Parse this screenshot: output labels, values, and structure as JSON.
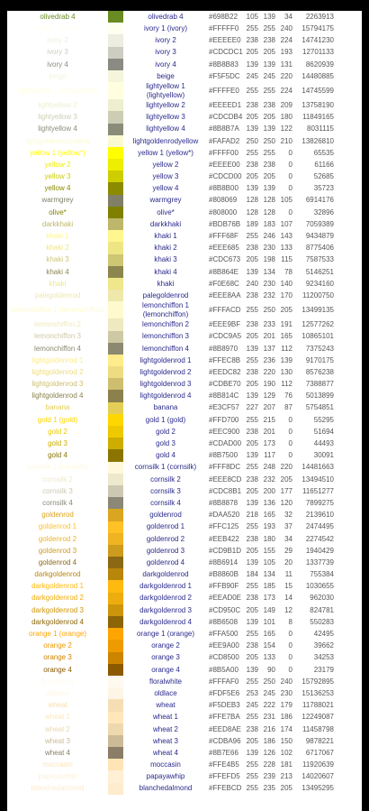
{
  "table": {
    "rows": [
      [
        "olivedrab 4",
        "#698B22",
        105,
        139,
        34,
        2263913
      ],
      [
        "ivory 1 (ivory)",
        "#FFFFF0",
        255,
        255,
        240,
        15794175
      ],
      [
        "ivory 2",
        "#EEEEE0",
        238,
        238,
        224,
        14741230
      ],
      [
        "ivory 3",
        "#CDCDC1",
        205,
        205,
        193,
        12701133
      ],
      [
        "ivory 4",
        "#8B8B83",
        139,
        139,
        131,
        8620939
      ],
      [
        "beige",
        "#F5F5DC",
        245,
        245,
        220,
        14480885
      ],
      [
        "lightyellow 1 (lightyellow)",
        "#FFFFE0",
        255,
        255,
        224,
        14745599
      ],
      [
        "lightyellow 2",
        "#EEEED1",
        238,
        238,
        209,
        13758190
      ],
      [
        "lightyellow 3",
        "#CDCDB4",
        205,
        205,
        180,
        11849165
      ],
      [
        "lightyellow 4",
        "#8B8B7A",
        139,
        139,
        122,
        8031115
      ],
      [
        "lightgoldenrodyellow",
        "#FAFAD2",
        250,
        250,
        210,
        13826810
      ],
      [
        "yellow 1 (yellow*)",
        "#FFFF00",
        255,
        255,
        0,
        65535
      ],
      [
        "yellow 2",
        "#EEEE00",
        238,
        238,
        0,
        61166
      ],
      [
        "yellow 3",
        "#CDCD00",
        205,
        205,
        0,
        52685
      ],
      [
        "yellow 4",
        "#8B8B00",
        139,
        139,
        0,
        35723
      ],
      [
        "warmgrey",
        "#808069",
        128,
        128,
        105,
        6914176
      ],
      [
        "olive*",
        "#808000",
        128,
        128,
        0,
        32896
      ],
      [
        "darkkhaki",
        "#BDB76B",
        189,
        183,
        107,
        7059389
      ],
      [
        "khaki 1",
        "#FFF68F",
        255,
        246,
        143,
        9434879
      ],
      [
        "khaki 2",
        "#EEE685",
        238,
        230,
        133,
        8775406
      ],
      [
        "khaki 3",
        "#CDC673",
        205,
        198,
        115,
        7587533
      ],
      [
        "khaki 4",
        "#8B864E",
        139,
        134,
        78,
        5146251
      ],
      [
        "khaki",
        "#F0E68C",
        240,
        230,
        140,
        9234160
      ],
      [
        "palegoldenrod",
        "#EEE8AA",
        238,
        232,
        170,
        11200750
      ],
      [
        "lemonchiffon 1 (lemonchiffon)",
        "#FFFACD",
        255,
        250,
        205,
        13499135
      ],
      [
        "lemonchiffon 2",
        "#EEE9BF",
        238,
        233,
        191,
        12577262
      ],
      [
        "lemonchiffon 3",
        "#CDC9A5",
        205,
        201,
        165,
        10865101
      ],
      [
        "lemonchiffon 4",
        "#8B8970",
        139,
        137,
        112,
        7375243
      ],
      [
        "lightgoldenrod 1",
        "#FFEC8B",
        255,
        236,
        139,
        9170175
      ],
      [
        "lightgoldenrod 2",
        "#EEDC82",
        238,
        220,
        130,
        8576238
      ],
      [
        "lightgoldenrod 3",
        "#CDBE70",
        205,
        190,
        112,
        7388877
      ],
      [
        "lightgoldenrod 4",
        "#8B814C",
        139,
        129,
        76,
        5013899
      ],
      [
        "banana",
        "#E3CF57",
        227,
        207,
        87,
        5754851
      ],
      [
        "gold 1 (gold)",
        "#FFD700",
        255,
        215,
        0,
        55295
      ],
      [
        "gold 2",
        "#EEC900",
        238,
        201,
        0,
        51694
      ],
      [
        "gold 3",
        "#CDAD00",
        205,
        173,
        0,
        44493
      ],
      [
        "gold 4",
        "#8B7500",
        139,
        117,
        0,
        30091
      ],
      [
        "cornsilk 1 (cornsilk)",
        "#FFF8DC",
        255,
        248,
        220,
        14481663
      ],
      [
        "cornsilk 2",
        "#EEE8CD",
        238,
        232,
        205,
        13494510
      ],
      [
        "cornsilk 3",
        "#CDC8B1",
        205,
        200,
        177,
        11651277
      ],
      [
        "cornsilk 4",
        "#8B8878",
        139,
        136,
        120,
        7899275
      ],
      [
        "goldenrod",
        "#DAA520",
        218,
        165,
        32,
        2139610
      ],
      [
        "goldenrod 1",
        "#FFC125",
        255,
        193,
        37,
        2474495
      ],
      [
        "goldenrod 2",
        "#EEB422",
        238,
        180,
        34,
        2274542
      ],
      [
        "goldenrod 3",
        "#CD9B1D",
        205,
        155,
        29,
        1940429
      ],
      [
        "goldenrod 4",
        "#8B6914",
        139,
        105,
        20,
        1337739
      ],
      [
        "darkgoldenrod",
        "#B8860B",
        184,
        134,
        11,
        755384
      ],
      [
        "darkgoldenrod 1",
        "#FFB90F",
        255,
        185,
        15,
        1030655
      ],
      [
        "darkgoldenrod 2",
        "#EEAD0E",
        238,
        173,
        14,
        962030
      ],
      [
        "darkgoldenrod 3",
        "#CD950C",
        205,
        149,
        12,
        824781
      ],
      [
        "darkgoldenrod 4",
        "#8B6508",
        139,
        101,
        8,
        550283
      ],
      [
        "orange 1 (orange)",
        "#FFA500",
        255,
        165,
        0,
        42495
      ],
      [
        "orange 2",
        "#EE9A00",
        238,
        154,
        0,
        39662
      ],
      [
        "orange 3",
        "#CD8500",
        205,
        133,
        0,
        34253
      ],
      [
        "orange 4",
        "#8B5A00",
        139,
        90,
        0,
        23179
      ],
      [
        "floralwhite",
        "#FFFAF0",
        255,
        250,
        240,
        15792895
      ],
      [
        "oldlace",
        "#FDF5E6",
        253,
        245,
        230,
        15136253
      ],
      [
        "wheat",
        "#F5DEB3",
        245,
        222,
        179,
        11788021
      ],
      [
        "wheat 1",
        "#FFE7BA",
        255,
        231,
        186,
        12249087
      ],
      [
        "wheat 2",
        "#EED8AE",
        238,
        216,
        174,
        11458798
      ],
      [
        "wheat 3",
        "#CDBA96",
        205,
        186,
        150,
        9878221
      ],
      [
        "wheat 4",
        "#8B7E66",
        139,
        126,
        102,
        6717067
      ],
      [
        "moccasin",
        "#FFE4B5",
        255,
        228,
        181,
        11920639
      ],
      [
        "papayawhip",
        "#FFEFD5",
        255,
        239,
        213,
        14020607
      ],
      [
        "blanchedalmond",
        "#FFEBCD",
        255,
        235,
        205,
        13495295
      ]
    ]
  }
}
